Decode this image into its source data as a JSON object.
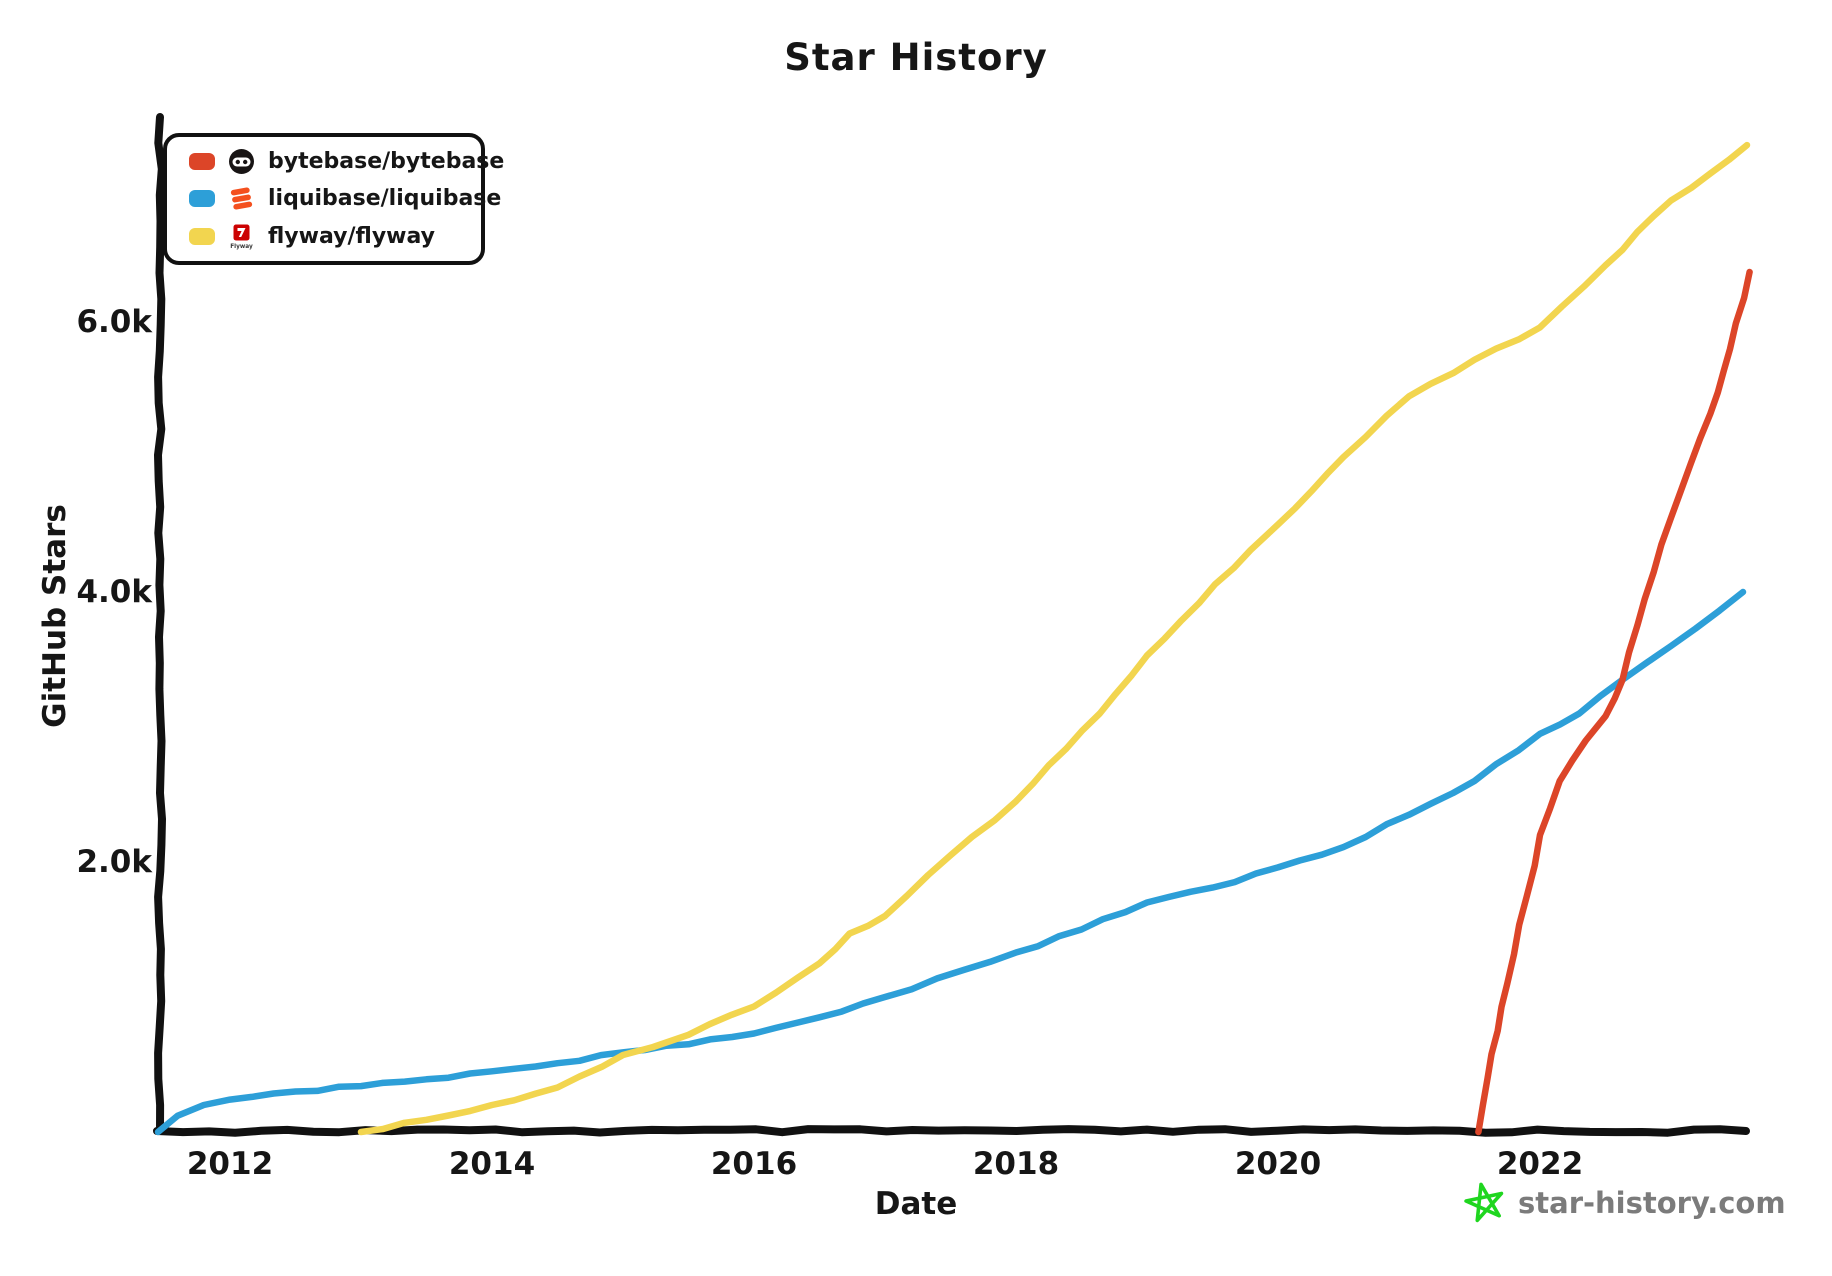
{
  "title": "Star History",
  "y_axis": {
    "label": "GitHub Stars",
    "ticks": [
      "2.0k",
      "4.0k",
      "6.0k"
    ],
    "tick_values": [
      2000,
      4000,
      6000
    ]
  },
  "x_axis": {
    "label": "Date",
    "ticks": [
      "2012",
      "2014",
      "2016",
      "2018",
      "2020",
      "2022"
    ],
    "tick_values": [
      2012,
      2014,
      2016,
      2018,
      2020,
      2022
    ]
  },
  "legend": [
    {
      "label": "bytebase/bytebase",
      "color": "#DC4528",
      "icon": "bytebase-logo"
    },
    {
      "label": "liquibase/liquibase",
      "color": "#2D9FD8",
      "icon": "liquibase-logo"
    },
    {
      "label": "flyway/flyway",
      "color": "#F2D54F",
      "icon": "flyway-logo",
      "logo_text": "Flyway"
    }
  ],
  "watermark": {
    "text": "star-history.com",
    "star_color": "#1FD61F",
    "text_color": "#7b7b7b"
  },
  "chart_data": {
    "type": "line",
    "title": "Star History",
    "xlabel": "Date",
    "ylabel": "GitHub Stars",
    "x_range": [
      2011.4,
      2023.6
    ],
    "ylim": [
      0,
      7400
    ],
    "grid": false,
    "legend_position": "top-left",
    "series": [
      {
        "name": "bytebase/bytebase",
        "color": "#DC4528",
        "points": [
          [
            2021.53,
            0
          ],
          [
            2021.6,
            400
          ],
          [
            2021.75,
            1100
          ],
          [
            2021.9,
            1750
          ],
          [
            2022.0,
            2200
          ],
          [
            2022.15,
            2600
          ],
          [
            2022.35,
            2900
          ],
          [
            2022.5,
            3080
          ],
          [
            2022.63,
            3350
          ],
          [
            2022.8,
            3950
          ],
          [
            2023.0,
            4550
          ],
          [
            2023.15,
            4950
          ],
          [
            2023.3,
            5320
          ],
          [
            2023.45,
            5800
          ],
          [
            2023.6,
            6370
          ]
        ]
      },
      {
        "name": "liquibase/liquibase",
        "color": "#2D9FD8",
        "points": [
          [
            2011.45,
            0
          ],
          [
            2011.6,
            120
          ],
          [
            2011.8,
            200
          ],
          [
            2012.0,
            240
          ],
          [
            2012.5,
            300
          ],
          [
            2013.0,
            340
          ],
          [
            2013.5,
            390
          ],
          [
            2014.0,
            450
          ],
          [
            2014.5,
            510
          ],
          [
            2015.0,
            590
          ],
          [
            2015.5,
            650
          ],
          [
            2016.0,
            730
          ],
          [
            2016.5,
            850
          ],
          [
            2017.0,
            1000
          ],
          [
            2017.6,
            1200
          ],
          [
            2018.0,
            1330
          ],
          [
            2018.5,
            1500
          ],
          [
            2019.0,
            1700
          ],
          [
            2019.5,
            1810
          ],
          [
            2020.0,
            1960
          ],
          [
            2020.5,
            2110
          ],
          [
            2021.0,
            2350
          ],
          [
            2021.5,
            2600
          ],
          [
            2022.0,
            2950
          ],
          [
            2022.3,
            3100
          ],
          [
            2022.63,
            3350
          ],
          [
            2023.0,
            3600
          ],
          [
            2023.55,
            4000
          ]
        ]
      },
      {
        "name": "flyway/flyway",
        "color": "#F2D54F",
        "points": [
          [
            2013.0,
            0
          ],
          [
            2013.5,
            90
          ],
          [
            2014.0,
            200
          ],
          [
            2014.5,
            330
          ],
          [
            2015.0,
            570
          ],
          [
            2015.23,
            630
          ],
          [
            2015.5,
            720
          ],
          [
            2016.0,
            930
          ],
          [
            2016.5,
            1250
          ],
          [
            2016.73,
            1470
          ],
          [
            2017.0,
            1600
          ],
          [
            2017.5,
            2050
          ],
          [
            2018.0,
            2450
          ],
          [
            2018.64,
            3100
          ],
          [
            2019.0,
            3530
          ],
          [
            2019.79,
            4310
          ],
          [
            2020.0,
            4500
          ],
          [
            2020.5,
            5000
          ],
          [
            2021.0,
            5450
          ],
          [
            2021.5,
            5720
          ],
          [
            2022.0,
            5960
          ],
          [
            2022.5,
            6420
          ],
          [
            2023.0,
            6900
          ],
          [
            2023.3,
            7100
          ],
          [
            2023.58,
            7310
          ]
        ]
      }
    ]
  }
}
